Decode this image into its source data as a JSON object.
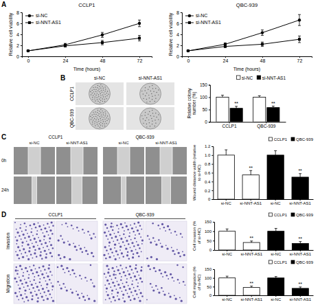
{
  "panel_letters": [
    "A",
    "B",
    "C",
    "D"
  ],
  "image_labels": {
    "B": {
      "columns": [
        "si-NC",
        "si-NNT-AS1"
      ],
      "rows": [
        "CCLP1",
        "QBC-939"
      ]
    },
    "C": {
      "groups": [
        "CCLP1",
        "QBC-939"
      ],
      "columns": [
        "si-NC",
        "si-NNT-AS1",
        "si-NC",
        "si-NNT-AS1"
      ],
      "rows": [
        "0h",
        "24h"
      ]
    },
    "D": {
      "groups": [
        "CCLP1",
        "QBC-939"
      ],
      "rows": [
        "Invasion",
        "Migration"
      ]
    }
  },
  "chart_data": [
    {
      "type": "line",
      "title": "CCLP1",
      "x_label": "Time (hours)",
      "y_label": "Relative cell viability",
      "x": [
        0,
        24,
        48,
        72
      ],
      "series": [
        {
          "name": "si-NC",
          "color": "#000000",
          "marker": "circle",
          "values": [
            1.0,
            2.1,
            3.9,
            6.0
          ],
          "errors": [
            0.05,
            0.25,
            0.45,
            0.6
          ]
        },
        {
          "name": "si-NNT-AS1",
          "color": "#000000",
          "marker": "square",
          "values": [
            1.0,
            1.9,
            2.5,
            3.3
          ],
          "errors": [
            0.05,
            0.2,
            0.4,
            0.5
          ]
        }
      ],
      "xlim": [
        -4,
        80
      ],
      "ylim": [
        0,
        8
      ],
      "xticks": [
        0,
        24,
        48,
        72
      ],
      "yticks": [
        0,
        2,
        4,
        6,
        8
      ],
      "legend": "upper left"
    },
    {
      "type": "line",
      "title": "QBC-939",
      "x_label": "Time (hours)",
      "y_label": "Relative cell viability",
      "x": [
        0,
        24,
        48,
        72
      ],
      "series": [
        {
          "name": "si-NC",
          "color": "#000000",
          "marker": "circle",
          "values": [
            1.0,
            2.2,
            4.3,
            6.6
          ],
          "errors": [
            0.05,
            0.25,
            0.5,
            1.0
          ]
        },
        {
          "name": "si-NNT-AS1",
          "color": "#000000",
          "marker": "square",
          "values": [
            1.0,
            1.8,
            2.2,
            3.1
          ],
          "errors": [
            0.05,
            0.2,
            0.4,
            0.6
          ]
        }
      ],
      "xlim": [
        -4,
        80
      ],
      "ylim": [
        0,
        8
      ],
      "xticks": [
        0,
        24,
        48,
        72
      ],
      "yticks": [
        0,
        2,
        4,
        6,
        8
      ],
      "legend": "upper left"
    },
    {
      "type": "bar",
      "y_label": "Relative colony number (%)",
      "categories": [
        "CCLP1",
        "QBC-939"
      ],
      "series": [
        {
          "name": "si-NC",
          "color": "#ffffff",
          "values": [
            100,
            100
          ],
          "errors": [
            8,
            6
          ]
        },
        {
          "name": "si-NNT-AS1",
          "color": "#000000",
          "values": [
            55,
            58
          ],
          "errors": [
            8,
            6
          ],
          "significance": [
            "**",
            "**"
          ]
        }
      ],
      "ylim": [
        0,
        150
      ],
      "yticks": [
        0,
        50,
        100,
        150
      ],
      "legend": "top"
    },
    {
      "type": "bar",
      "y_label": "Wound distance width (relative to si-NC)",
      "categories": [
        "si-NC",
        "si-NNT-AS1",
        "si-NC",
        "si-NNT-AS1"
      ],
      "series": [
        {
          "name": "CCLP1",
          "color": "#ffffff",
          "values": [
            1.0,
            0.55,
            null,
            null
          ],
          "errors": [
            0.12,
            0.1,
            null,
            null
          ],
          "significance": [
            null,
            "**",
            null,
            null
          ]
        },
        {
          "name": "QBC-939",
          "color": "#000000",
          "values": [
            null,
            null,
            1.0,
            0.5
          ],
          "errors": [
            null,
            null,
            0.1,
            0.08
          ],
          "significance": [
            null,
            null,
            null,
            "**"
          ]
        }
      ],
      "ylim": [
        0,
        1.2
      ],
      "yticks": [
        0,
        0.2,
        0.4,
        0.6,
        0.8,
        {
          "value": 1,
          "label": "1.0"
        },
        1.2
      ],
      "legend": "top"
    },
    {
      "type": "bar",
      "y_label": "Cell invasion (% of si-NC)",
      "categories": [
        "si-NC",
        "si-NNT-AS1",
        "si-NC",
        "si-NNT-AS1"
      ],
      "series": [
        {
          "name": "CCLP1",
          "color": "#ffffff",
          "values": [
            100,
            40,
            null,
            null
          ],
          "errors": [
            12,
            8,
            null,
            null
          ],
          "significance": [
            null,
            "**",
            null,
            null
          ]
        },
        {
          "name": "QBC-939",
          "color": "#000000",
          "values": [
            null,
            null,
            100,
            35
          ],
          "errors": [
            null,
            null,
            15,
            10
          ],
          "significance": [
            null,
            null,
            null,
            "**"
          ]
        }
      ],
      "ylim": [
        0,
        150
      ],
      "yticks": [
        0,
        50,
        100,
        150
      ],
      "legend": "top"
    },
    {
      "type": "bar",
      "y_label": "Cell migration (% of si-NC)",
      "categories": [
        "si-NC",
        "si-NNT-AS1",
        "si-NC",
        "si-NNT-AS1"
      ],
      "series": [
        {
          "name": "CCLP1",
          "color": "#ffffff",
          "values": [
            100,
            45,
            null,
            null
          ],
          "errors": [
            10,
            8,
            null,
            null
          ],
          "significance": [
            null,
            "**",
            null,
            null
          ]
        },
        {
          "name": "QBC-939",
          "color": "#000000",
          "values": [
            null,
            null,
            100,
            40
          ],
          "errors": [
            null,
            null,
            8,
            8
          ],
          "significance": [
            null,
            null,
            null,
            "**"
          ]
        }
      ],
      "ylim": [
        0,
        150
      ],
      "yticks": [
        0,
        50,
        100,
        150
      ],
      "legend": "top"
    }
  ]
}
